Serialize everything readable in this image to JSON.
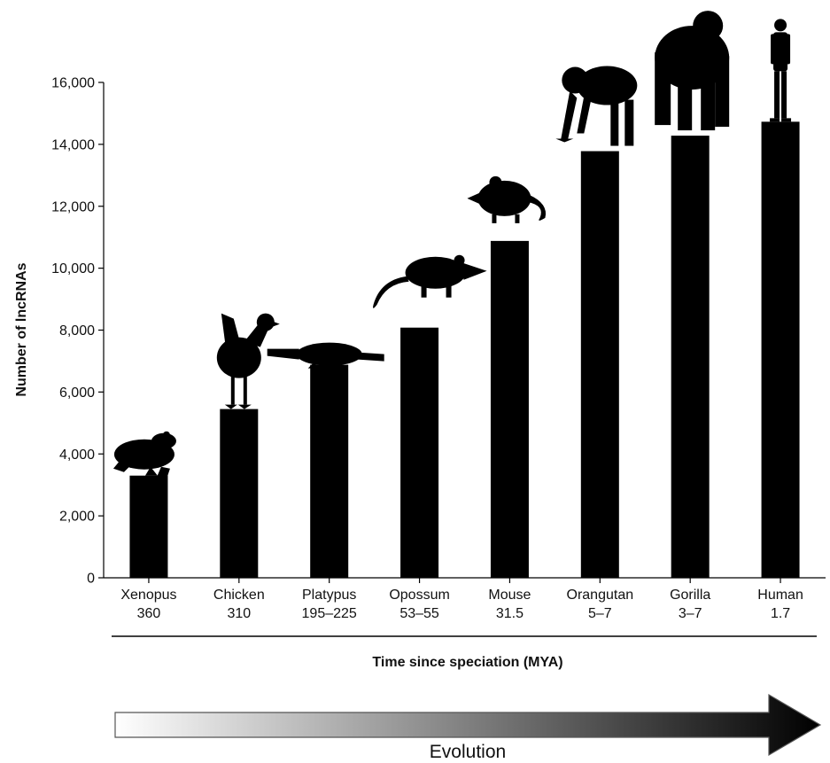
{
  "chart_data": {
    "type": "bar",
    "title": "",
    "ylabel": "Number of lncRNAs",
    "xlabel": "Time since speciation (MYA)",
    "ylim": [
      0,
      16000
    ],
    "yticks": [
      0,
      2000,
      4000,
      6000,
      8000,
      10000,
      12000,
      14000,
      16000
    ],
    "ytick_labels": [
      "0",
      "2,000",
      "4,000",
      "6,000",
      "8,000",
      "10,000",
      "12,000",
      "14,000",
      "16,000"
    ],
    "categories": [
      "Xenopus",
      "Chicken",
      "Platypus",
      "Opossum",
      "Mouse",
      "Orangutan",
      "Gorilla",
      "Human"
    ],
    "speciation_time": [
      "360",
      "310",
      "195–225",
      "53–55",
      "31.5",
      "5–7",
      "3–7",
      "1.7"
    ],
    "values": [
      3300,
      5450,
      6880,
      8080,
      10880,
      13780,
      14280,
      14730
    ],
    "bar_color": "#000000",
    "grid": false,
    "legend": "none",
    "animals": [
      "frog-silhouette",
      "chicken-silhouette",
      "platypus-silhouette",
      "opossum-silhouette",
      "mouse-silhouette",
      "orangutan-silhouette",
      "gorilla-silhouette",
      "human-silhouette"
    ],
    "arrow": {
      "label": "Evolution",
      "gradient_start": "#ffffff",
      "gradient_end": "#000000"
    }
  }
}
